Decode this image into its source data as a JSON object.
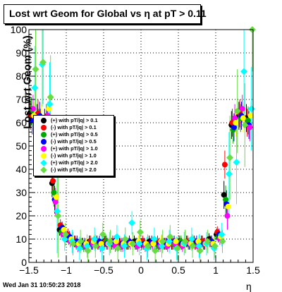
{
  "title": "Lost wrt Geom for Global vs  η at pT > 0.11",
  "footer": "Wed Jan 31 10:50:23 2018",
  "chart_data": {
    "type": "scatter",
    "title": "Lost wrt Geom for Global vs  η at pT > 0.11",
    "xlabel": "η",
    "ylabel": "Lost wrt Geom (%)",
    "xlim": [
      -1.5,
      1.5
    ],
    "ylim": [
      0,
      100
    ],
    "x_ticks": [
      "−1.5",
      "−1",
      "−0.5",
      "0",
      "0.5",
      "1",
      "1.5"
    ],
    "y_ticks": [
      "0",
      "10",
      "20",
      "30",
      "40",
      "50",
      "60",
      "70",
      "80",
      "90",
      "100"
    ],
    "grid": true,
    "legend_position": "left-center",
    "series": [
      {
        "name": "(+) with pT/|q| > 0.1",
        "color": "#000000",
        "marker": "circle",
        "x": [
          -1.45,
          -1.35,
          -1.25,
          -1.15,
          -1.05,
          -0.95,
          -0.85,
          -0.75,
          -0.65,
          -0.55,
          -0.45,
          -0.35,
          -0.25,
          -0.15,
          -0.05,
          0.05,
          0.15,
          0.25,
          0.35,
          0.45,
          0.55,
          0.65,
          0.75,
          0.85,
          0.95,
          1.05,
          1.15,
          1.25,
          1.35,
          1.45
        ],
        "y": [
          64,
          62,
          60,
          34,
          14,
          11,
          9,
          8,
          9,
          9,
          9,
          8,
          8,
          8,
          9,
          8,
          9,
          8,
          8,
          8,
          9,
          9,
          9,
          9,
          10,
          12,
          29,
          59,
          63,
          62
        ]
      },
      {
        "name": "(-) with pT/|q| > 0.1",
        "color": "#ff0000",
        "marker": "circle",
        "x": [
          -1.45,
          -1.35,
          -1.25,
          -1.15,
          -1.05,
          -0.95,
          -0.85,
          -0.75,
          -0.65,
          -0.55,
          -0.45,
          -0.35,
          -0.25,
          -0.15,
          -0.05,
          0.05,
          0.15,
          0.25,
          0.35,
          0.45,
          0.55,
          0.65,
          0.75,
          0.85,
          0.95,
          1.05,
          1.15,
          1.25,
          1.35,
          1.45
        ],
        "y": [
          63,
          64,
          58,
          35,
          16,
          12,
          9,
          8,
          9,
          8,
          9,
          9,
          8,
          8,
          8,
          9,
          8,
          9,
          8,
          8,
          8,
          9,
          8,
          9,
          9,
          13,
          42,
          60,
          64,
          60
        ]
      },
      {
        "name": "(+) with pT/|q| > 0.5",
        "color": "#00aa00",
        "marker": "circle",
        "x": [
          -1.45,
          -1.35,
          -1.25,
          -1.15,
          -1.05,
          -0.95,
          -0.85,
          -0.75,
          -0.65,
          -0.55,
          -0.45,
          -0.35,
          -0.25,
          -0.15,
          -0.05,
          0.05,
          0.15,
          0.25,
          0.35,
          0.45,
          0.55,
          0.65,
          0.75,
          0.85,
          0.95,
          1.05,
          1.15,
          1.25,
          1.35,
          1.45
        ],
        "y": [
          65,
          60,
          62,
          30,
          13,
          10,
          8,
          7,
          8,
          8,
          9,
          8,
          7,
          8,
          8,
          8,
          8,
          7,
          8,
          8,
          9,
          8,
          8,
          8,
          9,
          11,
          27,
          57,
          62,
          61
        ]
      },
      {
        "name": "(-) with pT/|q| > 0.5",
        "color": "#0000ff",
        "marker": "circle",
        "x": [
          -1.45,
          -1.35,
          -1.25,
          -1.15,
          -1.05,
          -0.95,
          -0.85,
          -0.75,
          -0.65,
          -0.55,
          -0.45,
          -0.35,
          -0.25,
          -0.15,
          -0.05,
          0.05,
          0.15,
          0.25,
          0.35,
          0.45,
          0.55,
          0.65,
          0.75,
          0.85,
          0.95,
          1.05,
          1.15,
          1.25,
          1.35,
          1.45
        ],
        "y": [
          61,
          63,
          59,
          27,
          15,
          11,
          9,
          8,
          8,
          9,
          8,
          9,
          8,
          9,
          8,
          8,
          9,
          8,
          8,
          9,
          8,
          8,
          9,
          8,
          9,
          12,
          25,
          58,
          63,
          59
        ]
      },
      {
        "name": "(+) with pT/|q| > 1.0",
        "color": "#ff00ff",
        "marker": "circle",
        "x": [
          -1.45,
          -1.35,
          -1.25,
          -1.15,
          -1.05,
          -0.95,
          -0.85,
          -0.75,
          -0.65,
          -0.55,
          -0.45,
          -0.35,
          -0.25,
          -0.15,
          -0.05,
          0.05,
          0.15,
          0.25,
          0.35,
          0.45,
          0.55,
          0.65,
          0.75,
          0.85,
          0.95,
          1.05,
          1.15,
          1.25,
          1.35,
          1.45
        ],
        "y": [
          66,
          60,
          63,
          26,
          12,
          9,
          7,
          7,
          8,
          7,
          8,
          7,
          7,
          8,
          7,
          7,
          8,
          7,
          7,
          8,
          7,
          8,
          7,
          8,
          8,
          10,
          20,
          62,
          66,
          58
        ]
      },
      {
        "name": "(-) with pT/|q| > 1.0",
        "color": "#ffff00",
        "marker": "circle",
        "x": [
          -1.45,
          -1.35,
          -1.25,
          -1.15,
          -1.05,
          -0.95,
          -0.85,
          -0.75,
          -0.65,
          -0.55,
          -0.45,
          -0.35,
          -0.25,
          -0.15,
          -0.05,
          0.05,
          0.15,
          0.25,
          0.35,
          0.45,
          0.55,
          0.65,
          0.75,
          0.85,
          0.95,
          1.05,
          1.15,
          1.25,
          1.35,
          1.45
        ],
        "y": [
          63,
          62,
          66,
          28,
          14,
          10,
          8,
          8,
          9,
          8,
          8,
          9,
          8,
          8,
          9,
          8,
          8,
          9,
          8,
          9,
          8,
          8,
          9,
          8,
          8,
          11,
          24,
          60,
          62,
          63
        ]
      },
      {
        "name": "(+) with pT/|q| > 2.0",
        "color": "#00ffff",
        "marker": "diamond",
        "x": [
          -1.45,
          -1.35,
          -1.25,
          -1.15,
          -1.05,
          -0.95,
          -0.85,
          -0.75,
          -0.65,
          -0.55,
          -0.45,
          -0.35,
          -0.25,
          -0.15,
          -0.05,
          0.05,
          0.15,
          0.25,
          0.35,
          0.45,
          0.55,
          0.65,
          0.75,
          0.85,
          0.95,
          1.05,
          1.15,
          1.25,
          1.35,
          1.45
        ],
        "y": [
          75,
          85,
          68,
          22,
          10,
          9,
          6,
          7,
          10,
          6,
          8,
          11,
          7,
          17,
          8,
          6,
          10,
          7,
          9,
          6,
          8,
          10,
          7,
          8,
          6,
          12,
          38,
          43,
          82,
          66
        ]
      },
      {
        "name": "(-) with pT/|q| > 2.0",
        "color": "#66dd44",
        "marker": "diamond",
        "x": [
          -1.45,
          -1.35,
          -1.25,
          -1.15,
          -1.05,
          -0.95,
          -0.85,
          -0.75,
          -0.65,
          -0.55,
          -0.45,
          -0.35,
          -0.25,
          -0.15,
          -0.05,
          0.05,
          0.15,
          0.25,
          0.35,
          0.45,
          0.55,
          0.65,
          0.75,
          0.85,
          0.95,
          1.05,
          1.15,
          1.25,
          1.35,
          1.45
        ],
        "y": [
          83,
          86,
          71,
          20,
          12,
          8,
          9,
          5,
          7,
          12,
          9,
          6,
          10,
          8,
          13,
          7,
          5,
          9,
          11,
          6,
          9,
          7,
          5,
          9,
          7,
          9,
          45,
          65,
          59,
          100
        ]
      }
    ]
  }
}
